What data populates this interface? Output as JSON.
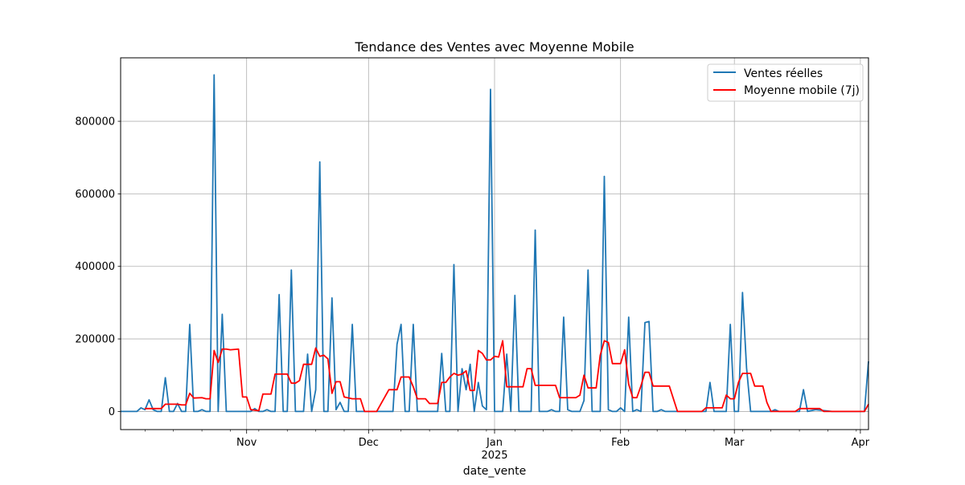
{
  "chart_data": {
    "type": "line",
    "title": "Tendance des Ventes avec Moyenne Mobile",
    "xlabel": "date_vente",
    "ylabel": "",
    "x_start": "2025-10-01",
    "x_range": [
      "2024-10-01",
      "2025-04-03"
    ],
    "ylim": [
      -50000,
      975000
    ],
    "yticks": [
      0,
      200000,
      400000,
      600000,
      800000
    ],
    "ytick_labels": [
      "0",
      "200000",
      "400000",
      "600000",
      "800000"
    ],
    "xticks": [
      {
        "date": "2024-11-01",
        "label": "Nov"
      },
      {
        "date": "2024-12-01",
        "label": "Dec"
      },
      {
        "date": "2025-01-01",
        "label": "Jan"
      },
      {
        "date": "2025-02-01",
        "label": "Feb"
      },
      {
        "date": "2025-03-01",
        "label": "Mar"
      },
      {
        "date": "2025-04-01",
        "label": "Apr"
      }
    ],
    "year_label": {
      "date": "2025-01-01",
      "label": "2025"
    },
    "grid": true,
    "legend_position": "top-right",
    "series": [
      {
        "name": "Ventes réelles",
        "color": "#1f77b4",
        "points": [
          [
            "2024-10-01",
            0
          ],
          [
            "2024-10-05",
            0
          ],
          [
            "2024-10-06",
            10000
          ],
          [
            "2024-10-07",
            5000
          ],
          [
            "2024-10-08",
            32000
          ],
          [
            "2024-10-09",
            5000
          ],
          [
            "2024-10-10",
            0
          ],
          [
            "2024-10-11",
            0
          ],
          [
            "2024-10-12",
            93000
          ],
          [
            "2024-10-13",
            0
          ],
          [
            "2024-10-14",
            0
          ],
          [
            "2024-10-15",
            22000
          ],
          [
            "2024-10-16",
            0
          ],
          [
            "2024-10-17",
            0
          ],
          [
            "2024-10-18",
            240000
          ],
          [
            "2024-10-19",
            0
          ],
          [
            "2024-10-20",
            0
          ],
          [
            "2024-10-21",
            5000
          ],
          [
            "2024-10-22",
            0
          ],
          [
            "2024-10-23",
            0
          ],
          [
            "2024-10-24",
            928000
          ],
          [
            "2024-10-25",
            0
          ],
          [
            "2024-10-26",
            268000
          ],
          [
            "2024-10-27",
            0
          ],
          [
            "2024-10-28",
            0
          ],
          [
            "2024-10-29",
            0
          ],
          [
            "2024-10-30",
            0
          ],
          [
            "2024-10-31",
            0
          ],
          [
            "2024-11-01",
            0
          ],
          [
            "2024-11-02",
            0
          ],
          [
            "2024-11-03",
            8000
          ],
          [
            "2024-11-04",
            0
          ],
          [
            "2024-11-05",
            0
          ],
          [
            "2024-11-06",
            5000
          ],
          [
            "2024-11-07",
            0
          ],
          [
            "2024-11-08",
            0
          ],
          [
            "2024-11-09",
            322000
          ],
          [
            "2024-11-10",
            0
          ],
          [
            "2024-11-11",
            0
          ],
          [
            "2024-11-12",
            390000
          ],
          [
            "2024-11-13",
            0
          ],
          [
            "2024-11-14",
            0
          ],
          [
            "2024-11-15",
            0
          ],
          [
            "2024-11-16",
            158000
          ],
          [
            "2024-11-17",
            0
          ],
          [
            "2024-11-18",
            60000
          ],
          [
            "2024-11-19",
            688000
          ],
          [
            "2024-11-20",
            0
          ],
          [
            "2024-11-21",
            0
          ],
          [
            "2024-11-22",
            313000
          ],
          [
            "2024-11-23",
            5000
          ],
          [
            "2024-11-24",
            25000
          ],
          [
            "2024-11-25",
            0
          ],
          [
            "2024-11-26",
            0
          ],
          [
            "2024-11-27",
            240000
          ],
          [
            "2024-11-28",
            0
          ],
          [
            "2024-11-29",
            0
          ],
          [
            "2024-11-30",
            0
          ],
          [
            "2024-12-01",
            0
          ],
          [
            "2024-12-07",
            0
          ],
          [
            "2024-12-08",
            185000
          ],
          [
            "2024-12-09",
            240000
          ],
          [
            "2024-12-10",
            0
          ],
          [
            "2024-12-11",
            0
          ],
          [
            "2024-12-12",
            240000
          ],
          [
            "2024-12-13",
            0
          ],
          [
            "2024-12-14",
            0
          ],
          [
            "2024-12-18",
            0
          ],
          [
            "2024-12-19",
            160000
          ],
          [
            "2024-12-20",
            0
          ],
          [
            "2024-12-21",
            0
          ],
          [
            "2024-12-22",
            405000
          ],
          [
            "2024-12-23",
            0
          ],
          [
            "2024-12-24",
            118000
          ],
          [
            "2024-12-25",
            60000
          ],
          [
            "2024-12-26",
            130000
          ],
          [
            "2024-12-27",
            0
          ],
          [
            "2024-12-28",
            80000
          ],
          [
            "2024-12-29",
            15000
          ],
          [
            "2024-12-30",
            5000
          ],
          [
            "2024-12-31",
            888000
          ],
          [
            "2025-01-01",
            0
          ],
          [
            "2025-01-02",
            0
          ],
          [
            "2025-01-03",
            0
          ],
          [
            "2025-01-04",
            158000
          ],
          [
            "2025-01-05",
            0
          ],
          [
            "2025-01-06",
            320000
          ],
          [
            "2025-01-07",
            0
          ],
          [
            "2025-01-08",
            0
          ],
          [
            "2025-01-09",
            0
          ],
          [
            "2025-01-10",
            0
          ],
          [
            "2025-01-11",
            500000
          ],
          [
            "2025-01-12",
            0
          ],
          [
            "2025-01-13",
            0
          ],
          [
            "2025-01-14",
            0
          ],
          [
            "2025-01-15",
            5000
          ],
          [
            "2025-01-16",
            0
          ],
          [
            "2025-01-17",
            0
          ],
          [
            "2025-01-18",
            260000
          ],
          [
            "2025-01-19",
            5000
          ],
          [
            "2025-01-20",
            0
          ],
          [
            "2025-01-21",
            0
          ],
          [
            "2025-01-22",
            0
          ],
          [
            "2025-01-23",
            30000
          ],
          [
            "2025-01-24",
            390000
          ],
          [
            "2025-01-25",
            0
          ],
          [
            "2025-01-26",
            0
          ],
          [
            "2025-01-27",
            0
          ],
          [
            "2025-01-28",
            648000
          ],
          [
            "2025-01-29",
            5000
          ],
          [
            "2025-01-30",
            0
          ],
          [
            "2025-01-31",
            0
          ],
          [
            "2025-02-01",
            10000
          ],
          [
            "2025-02-02",
            0
          ],
          [
            "2025-02-03",
            260000
          ],
          [
            "2025-02-04",
            0
          ],
          [
            "2025-02-05",
            5000
          ],
          [
            "2025-02-06",
            0
          ],
          [
            "2025-02-07",
            245000
          ],
          [
            "2025-02-08",
            248000
          ],
          [
            "2025-02-09",
            0
          ],
          [
            "2025-02-10",
            0
          ],
          [
            "2025-02-11",
            5000
          ],
          [
            "2025-02-12",
            0
          ],
          [
            "2025-02-13",
            0
          ],
          [
            "2025-02-22",
            0
          ],
          [
            "2025-02-23",
            80000
          ],
          [
            "2025-02-24",
            0
          ],
          [
            "2025-02-27",
            0
          ],
          [
            "2025-02-28",
            240000
          ],
          [
            "2025-03-01",
            0
          ],
          [
            "2025-03-02",
            0
          ],
          [
            "2025-03-03",
            328000
          ],
          [
            "2025-03-04",
            120000
          ],
          [
            "2025-03-05",
            0
          ],
          [
            "2025-03-10",
            0
          ],
          [
            "2025-03-11",
            5000
          ],
          [
            "2025-03-12",
            0
          ],
          [
            "2025-03-17",
            0
          ],
          [
            "2025-03-18",
            60000
          ],
          [
            "2025-03-19",
            0
          ],
          [
            "2025-03-21",
            5000
          ],
          [
            "2025-03-25",
            0
          ],
          [
            "2025-04-02",
            0
          ],
          [
            "2025-04-03",
            138000
          ]
        ]
      },
      {
        "name": "Moyenne mobile (7j)",
        "color": "#ff0000",
        "points": [
          [
            "2024-10-07",
            8000
          ],
          [
            "2024-10-11",
            8000
          ],
          [
            "2024-10-12",
            20000
          ],
          [
            "2024-10-15",
            20000
          ],
          [
            "2024-10-16",
            18000
          ],
          [
            "2024-10-17",
            18000
          ],
          [
            "2024-10-18",
            50000
          ],
          [
            "2024-10-19",
            37000
          ],
          [
            "2024-10-21",
            38000
          ],
          [
            "2024-10-22",
            35000
          ],
          [
            "2024-10-23",
            35000
          ],
          [
            "2024-10-24",
            168000
          ],
          [
            "2024-10-25",
            135000
          ],
          [
            "2024-10-26",
            172000
          ],
          [
            "2024-10-27",
            172000
          ],
          [
            "2024-10-28",
            170000
          ],
          [
            "2024-10-30",
            172000
          ],
          [
            "2024-10-31",
            40000
          ],
          [
            "2024-11-01",
            40000
          ],
          [
            "2024-11-02",
            5000
          ],
          [
            "2024-11-04",
            2000
          ],
          [
            "2024-11-05",
            48000
          ],
          [
            "2024-11-07",
            48000
          ],
          [
            "2024-11-08",
            103000
          ],
          [
            "2024-11-11",
            103000
          ],
          [
            "2024-11-12",
            78000
          ],
          [
            "2024-11-13",
            78000
          ],
          [
            "2024-11-14",
            85000
          ],
          [
            "2024-11-15",
            130000
          ],
          [
            "2024-11-17",
            130000
          ],
          [
            "2024-11-18",
            175000
          ],
          [
            "2024-11-19",
            152000
          ],
          [
            "2024-11-20",
            155000
          ],
          [
            "2024-11-21",
            145000
          ],
          [
            "2024-11-22",
            50000
          ],
          [
            "2024-11-23",
            82000
          ],
          [
            "2024-11-24",
            82000
          ],
          [
            "2024-11-25",
            40000
          ],
          [
            "2024-11-27",
            35000
          ],
          [
            "2024-11-29",
            35000
          ],
          [
            "2024-11-30",
            0
          ],
          [
            "2024-12-03",
            0
          ],
          [
            "2024-12-06",
            60000
          ],
          [
            "2024-12-08",
            60000
          ],
          [
            "2024-12-09",
            95000
          ],
          [
            "2024-12-11",
            95000
          ],
          [
            "2024-12-12",
            68000
          ],
          [
            "2024-12-13",
            35000
          ],
          [
            "2024-12-15",
            35000
          ],
          [
            "2024-12-16",
            22000
          ],
          [
            "2024-12-18",
            22000
          ],
          [
            "2024-12-19",
            80000
          ],
          [
            "2024-12-20",
            80000
          ],
          [
            "2024-12-21",
            95000
          ],
          [
            "2024-12-22",
            105000
          ],
          [
            "2024-12-23",
            100000
          ],
          [
            "2024-12-24",
            103000
          ],
          [
            "2024-12-25",
            112000
          ],
          [
            "2024-12-26",
            58000
          ],
          [
            "2024-12-27",
            58000
          ],
          [
            "2024-12-28",
            168000
          ],
          [
            "2024-12-29",
            160000
          ],
          [
            "2024-12-30",
            142000
          ],
          [
            "2024-12-31",
            142000
          ],
          [
            "2025-01-01",
            152000
          ],
          [
            "2025-01-02",
            150000
          ],
          [
            "2025-01-03",
            195000
          ],
          [
            "2025-01-04",
            68000
          ],
          [
            "2025-01-08",
            68000
          ],
          [
            "2025-01-09",
            118000
          ],
          [
            "2025-01-10",
            118000
          ],
          [
            "2025-01-11",
            72000
          ],
          [
            "2025-01-16",
            72000
          ],
          [
            "2025-01-17",
            38000
          ],
          [
            "2025-01-21",
            38000
          ],
          [
            "2025-01-22",
            45000
          ],
          [
            "2025-01-23",
            100000
          ],
          [
            "2025-01-24",
            65000
          ],
          [
            "2025-01-26",
            65000
          ],
          [
            "2025-01-27",
            155000
          ],
          [
            "2025-01-28",
            195000
          ],
          [
            "2025-01-29",
            190000
          ],
          [
            "2025-01-30",
            132000
          ],
          [
            "2025-02-01",
            132000
          ],
          [
            "2025-02-02",
            170000
          ],
          [
            "2025-02-03",
            75000
          ],
          [
            "2025-02-04",
            38000
          ],
          [
            "2025-02-05",
            38000
          ],
          [
            "2025-02-06",
            70000
          ],
          [
            "2025-02-07",
            108000
          ],
          [
            "2025-02-08",
            108000
          ],
          [
            "2025-02-09",
            70000
          ],
          [
            "2025-02-13",
            70000
          ],
          [
            "2025-02-15",
            0
          ],
          [
            "2025-02-21",
            0
          ],
          [
            "2025-02-22",
            10000
          ],
          [
            "2025-02-26",
            10000
          ],
          [
            "2025-02-27",
            45000
          ],
          [
            "2025-02-28",
            35000
          ],
          [
            "2025-03-01",
            35000
          ],
          [
            "2025-03-02",
            80000
          ],
          [
            "2025-03-03",
            105000
          ],
          [
            "2025-03-05",
            105000
          ],
          [
            "2025-03-06",
            70000
          ],
          [
            "2025-03-08",
            70000
          ],
          [
            "2025-03-09",
            25000
          ],
          [
            "2025-03-10",
            0
          ],
          [
            "2025-03-16",
            0
          ],
          [
            "2025-03-17",
            8000
          ],
          [
            "2025-03-22",
            8000
          ],
          [
            "2025-03-23",
            0
          ],
          [
            "2025-04-02",
            0
          ],
          [
            "2025-04-03",
            20000
          ]
        ]
      }
    ]
  }
}
